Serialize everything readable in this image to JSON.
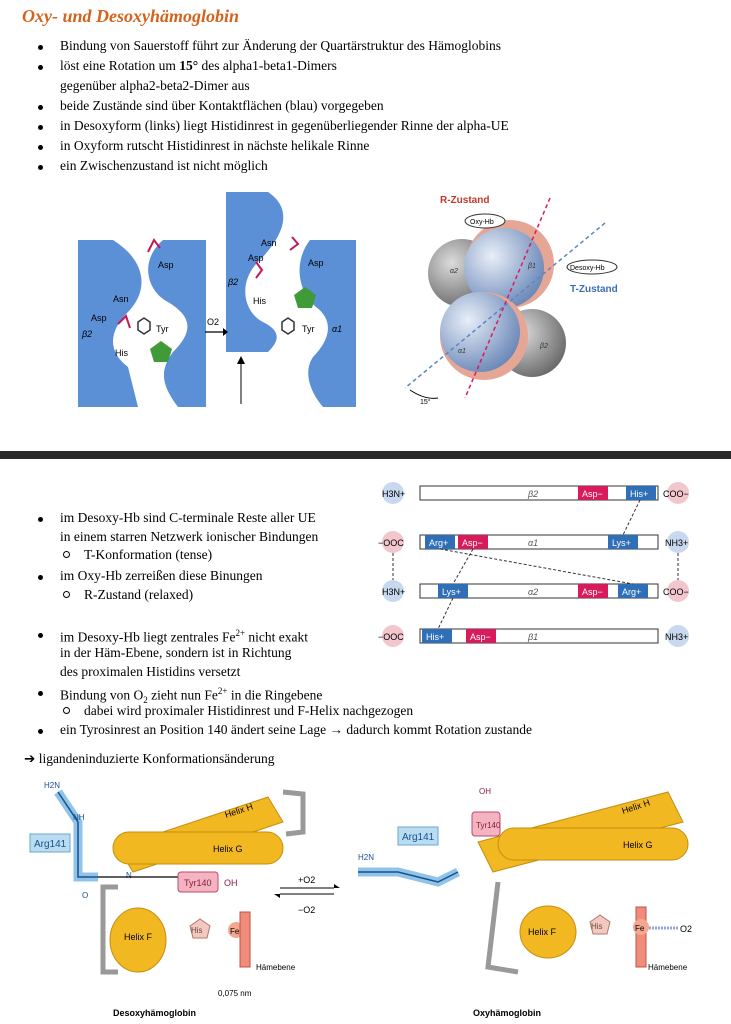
{
  "title": "Oxy- und Desoxyhämoglobin",
  "intro_bullets": [
    {
      "pre": "Bindung von Sauerstoff führt zur Änderung der Quartärstruktur des Hämoglobins"
    },
    {
      "pre": "löst eine Rotation um ",
      "bold": "15°",
      "post": " des alpha1-beta1-Dimers"
    },
    {
      "pre": "gegenüber alpha2-beta2-Dimer aus"
    },
    {
      "pre": "beide Zustände sind über Kontaktflächen (blau) vorgegeben"
    },
    {
      "pre": "in Desoxyform (links) liegt Histidinrest in gegenüberliegender Rinne der alpha-UE"
    },
    {
      "pre": "in Oxyform rutscht Histidinrest in nächste helikale Rinne"
    },
    {
      "pre": "ein Zwischenzustand ist nicht möglich"
    }
  ],
  "fig1": {
    "labels": {
      "asn": "Asn",
      "asp": "Asp",
      "tyr": "Tyr",
      "his": "His",
      "beta2": "β2",
      "alpha1": "α1",
      "o2": "O2"
    }
  },
  "fig2": {
    "r_state": "R-Zustand",
    "t_state": "T-Zustand",
    "oxy_tag": "Oxy-Hb",
    "desoxy_tag": "Desoxy-Hb",
    "angle": "15°",
    "sub_a2": "α2",
    "sub_b1": "β1",
    "sub_a1": "α1",
    "sub_b2": "β2"
  },
  "section2_bullets": {
    "b1_l1": "im Desoxy-Hb sind C-terminale Reste aller UE",
    "b1_l2": "in einem starren Netzwerk ionischer Bindungen",
    "b1_sub": "T-Konformation (tense)",
    "b2": "im Oxy-Hb zerreißen diese Binungen",
    "b2_sub": "R-Zustand (relaxed)",
    "b3_l1_pre": "im Desoxy-Hb liegt zentrales Fe",
    "b3_sup": "2+",
    "b3_l1_post": " nicht exakt",
    "b3_l2": "in der Häm-Ebene, sondern ist in Richtung",
    "b3_l3": "des proximalen Histidins versetzt",
    "b4_pre": "Bindung von O",
    "b4_sub": "2",
    "b4_mid": " zieht nun Fe",
    "b4_sup": "2+",
    "b4_post": " in die Ringebene",
    "b4_subitem": "dabei wird proximaler Histidinrest und F-Helix nachgezogen",
    "b5": "ein Tyrosinrest an Position 140 ändert seine Lage → dadurch kommt Rotation zustande"
  },
  "conclusion": "ligandeninduzierte Konformationsänderung",
  "chains": [
    {
      "left": "H3N+",
      "greek": "β2",
      "right": "COO−",
      "boxes": [
        {
          "t": "Asp−",
          "c": "#d81b5c"
        },
        {
          "t": "His+",
          "c": "#2f6fb7"
        }
      ]
    },
    {
      "left": "−OOC",
      "greek": "α1",
      "right": "NH3+",
      "boxes": [
        {
          "t": "Arg+",
          "c": "#2f6fb7"
        },
        {
          "t": "Asp−",
          "c": "#d81b5c"
        },
        {
          "t": "Lys+",
          "c": "#2f6fb7"
        }
      ]
    },
    {
      "left": "H3N+",
      "greek": "α2",
      "right": "COO−",
      "boxes": [
        {
          "t": "Lys+",
          "c": "#2f6fb7"
        },
        {
          "t": "Asp−",
          "c": "#d81b5c"
        },
        {
          "t": "Arg+",
          "c": "#2f6fb7"
        }
      ]
    },
    {
      "left": "−OOC",
      "greek": "β1",
      "right": "NH3+",
      "boxes": [
        {
          "t": "His+",
          "c": "#2f6fb7"
        },
        {
          "t": "Asp−",
          "c": "#d81b5c"
        }
      ]
    }
  ],
  "fig3": {
    "helix_h": "Helix H",
    "helix_g": "Helix G",
    "helix_f": "Helix F",
    "arg": "Arg141",
    "tyr": "Tyr140",
    "his": "His",
    "fe": "Fe",
    "o2": "O2",
    "plus_o2": "+O2",
    "minus_o2": "−O2",
    "haem": "Hämebene",
    "dist": "0,075 nm",
    "desoxy_caption": "Desoxyhämoglobin",
    "oxy_caption": "Oxyhämoglobin",
    "oh": "OH",
    "nh": "NH",
    "n": "N",
    "o": "O",
    "h2n": "H2N"
  }
}
